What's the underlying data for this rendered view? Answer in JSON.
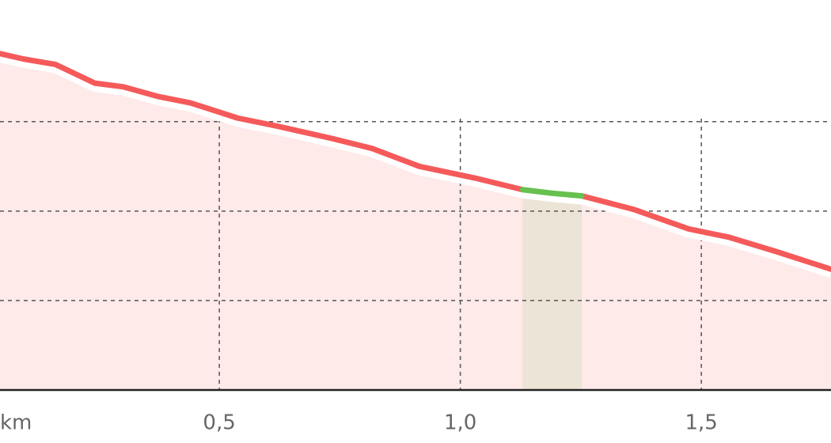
{
  "chart_data": {
    "type": "line",
    "xlabel": "km",
    "x": [
      0.045,
      0.094,
      0.16,
      0.242,
      0.3,
      0.374,
      0.44,
      0.538,
      0.62,
      0.735,
      0.817,
      0.915,
      1.03,
      1.129,
      1.19,
      1.252,
      1.359,
      1.474,
      1.556,
      1.654,
      1.769
    ],
    "series": [
      {
        "color": "#f55a5a",
        "values": [
          3.76,
          3.7,
          3.64,
          3.43,
          3.39,
          3.28,
          3.21,
          3.04,
          2.95,
          2.81,
          2.7,
          2.5,
          2.37,
          2.24,
          null,
          2.17,
          2.02,
          1.8,
          1.71,
          1.55,
          1.35
        ]
      },
      {
        "color": "#66c14e",
        "values": [
          null,
          null,
          null,
          null,
          null,
          null,
          null,
          null,
          null,
          null,
          null,
          null,
          null,
          2.24,
          2.2,
          2.17,
          null,
          null,
          null,
          null,
          null
        ]
      }
    ],
    "xlim": [
      0.045,
      1.769
    ],
    "xticks": [
      {
        "value": 0.5,
        "label": "0,5"
      },
      {
        "value": 1.0,
        "label": "1,0"
      },
      {
        "value": 1.5,
        "label": "1,5"
      }
    ],
    "ylim": [
      0,
      4.36
    ],
    "yticks": [
      1,
      2,
      3
    ],
    "grid": true
  }
}
